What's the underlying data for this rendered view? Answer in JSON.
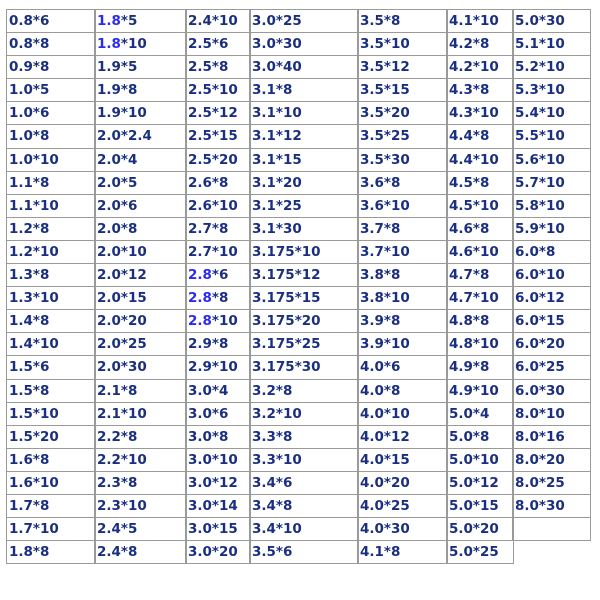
{
  "colors": {
    "text": "#1b2f80",
    "highlight": "#2b2bef",
    "border": "#9a9a9a"
  },
  "columns": [
    [
      "0.8*6",
      "0.8*8",
      "0.9*8",
      "1.0*5",
      "1.0*6",
      "1.0*8",
      "1.0*10",
      "1.1*8",
      "1.1*10",
      "1.2*8",
      "1.2*10",
      "1.3*8",
      "1.3*10",
      "1.4*8",
      "1.4*10",
      "1.5*6",
      "1.5*8",
      "1.5*10",
      "1.5*20",
      "1.6*8",
      "1.6*10",
      "1.7*8",
      "1.7*10",
      "1.8*8"
    ],
    [
      "1.8*5",
      "1.8*10",
      "1.9*5",
      "1.9*8",
      "1.9*10",
      "2.0*2.4",
      "2.0*4",
      "2.0*5",
      "2.0*6",
      "2.0*8",
      "2.0*10",
      "2.0*12",
      "2.0*15",
      "2.0*20",
      "2.0*25",
      "2.0*30",
      "2.1*8",
      "2.1*10",
      "2.2*8",
      "2.2*10",
      "2.3*8",
      "2.3*10",
      "2.4*5",
      "2.4*8"
    ],
    [
      "2.4*10",
      "2.5*6",
      "2.5*8",
      "2.5*10",
      "2.5*12",
      "2.5*15",
      "2.5*20",
      "2.6*8",
      "2.6*10",
      "2.7*8",
      "2.7*10",
      "2.8*6",
      "2.8*8",
      "2.8*10",
      "2.9*8",
      "2.9*10",
      "3.0*4",
      "3.0*6",
      "3.0*8",
      "3.0*10",
      "3.0*12",
      "3.0*14",
      "3.0*15",
      "3.0*20"
    ],
    [
      "3.0*25",
      "3.0*30",
      "3.0*40",
      "3.1*8",
      "3.1*10",
      "3.1*12",
      "3.1*15",
      "3.1*20",
      "3.1*25",
      "3.1*30",
      "3.175*10",
      "3.175*12",
      "3.175*15",
      "3.175*20",
      "3.175*25",
      "3.175*30",
      "3.2*8",
      "3.2*10",
      "3.3*8",
      "3.3*10",
      "3.4*6",
      "3.4*8",
      "3.4*10",
      "3.5*6"
    ],
    [
      "3.5*8",
      "3.5*10",
      "3.5*12",
      "3.5*15",
      "3.5*20",
      "3.5*25",
      "3.5*30",
      "3.6*8",
      "3.6*10",
      "3.7*8",
      "3.7*10",
      "3.8*8",
      "3.8*10",
      "3.9*8",
      "3.9*10",
      "4.0*6",
      "4.0*8",
      "4.0*10",
      "4.0*12",
      "4.0*15",
      "4.0*20",
      "4.0*25",
      "4.0*30",
      "4.1*8"
    ],
    [
      "4.1*10",
      "4.2*8",
      "4.2*10",
      "4.3*8",
      "4.3*10",
      "4.4*8",
      "4.4*10",
      "4.5*8",
      "4.5*10",
      "4.6*8",
      "4.6*10",
      "4.7*8",
      "4.7*10",
      "4.8*8",
      "4.8*10",
      "4.9*8",
      "4.9*10",
      "5.0*4",
      "5.0*8",
      "5.0*10",
      "5.0*12",
      "5.0*15",
      "5.0*20",
      "5.0*25"
    ],
    [
      "5.0*30",
      "5.1*10",
      "5.2*10",
      "5.3*10",
      "5.4*10",
      "5.5*10",
      "5.6*10",
      "5.7*10",
      "5.8*10",
      "5.9*10",
      "6.0*8",
      "6.0*10",
      "6.0*12",
      "6.0*15",
      "6.0*20",
      "6.0*25",
      "6.0*30",
      "8.0*10",
      "8.0*16",
      "8.0*20",
      "8.0*25",
      "8.0*30",
      ""
    ]
  ],
  "highlighted_prefixes": [
    {
      "col": 1,
      "rows": [
        0,
        1
      ],
      "prefix": "1.8"
    },
    {
      "col": 2,
      "rows": [
        11,
        12,
        13
      ],
      "prefix": "2.8"
    }
  ]
}
